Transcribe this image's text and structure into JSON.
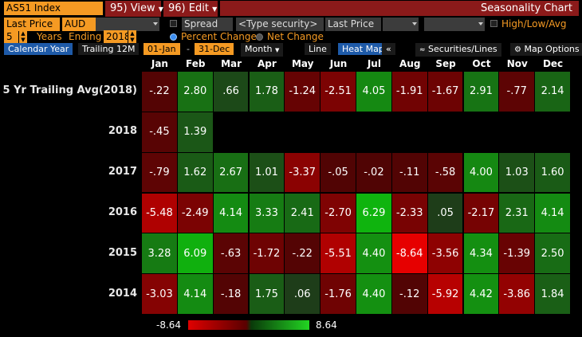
{
  "toolbar": {
    "security": "AS51 Index",
    "view_menu": "95) View",
    "edit_menu": "96) Edit",
    "title": "Seasonality Chart"
  },
  "params": {
    "field1": "Last Price",
    "currency": "AUD",
    "spread_label": "Spread",
    "type_security": "<Type security>",
    "field2": "Last Price",
    "high_low_label": "High/Low/Avg",
    "years": "5",
    "years_label": "Years",
    "ending_label": "Ending",
    "end_year": "2018",
    "percent_change": "Percent Change",
    "net_change": "Net Change",
    "selected_change": "percent"
  },
  "tabs": {
    "calendar_year": "Calendar Year",
    "trailing": "Trailing 12M",
    "start_date": "01-Jan",
    "dash": "-",
    "end_date": "31-Dec",
    "period": "Month",
    "line": "Line",
    "heat_map": "Heat Map",
    "collapse": "«",
    "securities_lines": "Securities/Lines",
    "map_options": "Map Options"
  },
  "months": [
    "Jan",
    "Feb",
    "Mar",
    "Apr",
    "May",
    "Jun",
    "Jul",
    "Aug",
    "Sep",
    "Oct",
    "Nov",
    "Dec"
  ],
  "rows": [
    {
      "label": "5 Yr Trailing Avg(2018)",
      "values": [
        "-.22",
        "2.80",
        ".66",
        "1.78",
        "-1.24",
        "-2.51",
        "4.05",
        "-1.91",
        "-1.67",
        "2.91",
        "-.77",
        "2.14"
      ]
    },
    {
      "label": "2018",
      "values": [
        "-.45",
        "1.39",
        "",
        "",
        "",
        "",
        "",
        "",
        "",
        "",
        "",
        ""
      ]
    },
    {
      "label": "2017",
      "values": [
        "-.79",
        "1.62",
        "2.67",
        "1.01",
        "-3.37",
        "-.05",
        "-.02",
        "-.11",
        "-.58",
        "4.00",
        "1.03",
        "1.60"
      ]
    },
    {
      "label": "2016",
      "values": [
        "-5.48",
        "-2.49",
        "4.14",
        "3.33",
        "2.41",
        "-2.70",
        "6.29",
        "-2.33",
        ".05",
        "-2.17",
        "2.31",
        "4.14"
      ]
    },
    {
      "label": "2015",
      "values": [
        "3.28",
        "6.09",
        "-.63",
        "-1.72",
        "-.22",
        "-5.51",
        "4.40",
        "-8.64",
        "-3.56",
        "4.34",
        "-1.39",
        "2.50"
      ]
    },
    {
      "label": "2014",
      "values": [
        "-3.03",
        "4.14",
        "-.18",
        "1.75",
        ".06",
        "-1.76",
        "4.40",
        "-.12",
        "-5.92",
        "4.42",
        "-3.86",
        "1.84"
      ]
    }
  ],
  "legend": {
    "min": "-8.64",
    "max": "8.64"
  },
  "colors": {
    "accent": "#f59a23",
    "menu": "#8b1a1a",
    "neg": "#e00000",
    "pos": "#22d622",
    "tab_active": "#1e5aa8"
  }
}
